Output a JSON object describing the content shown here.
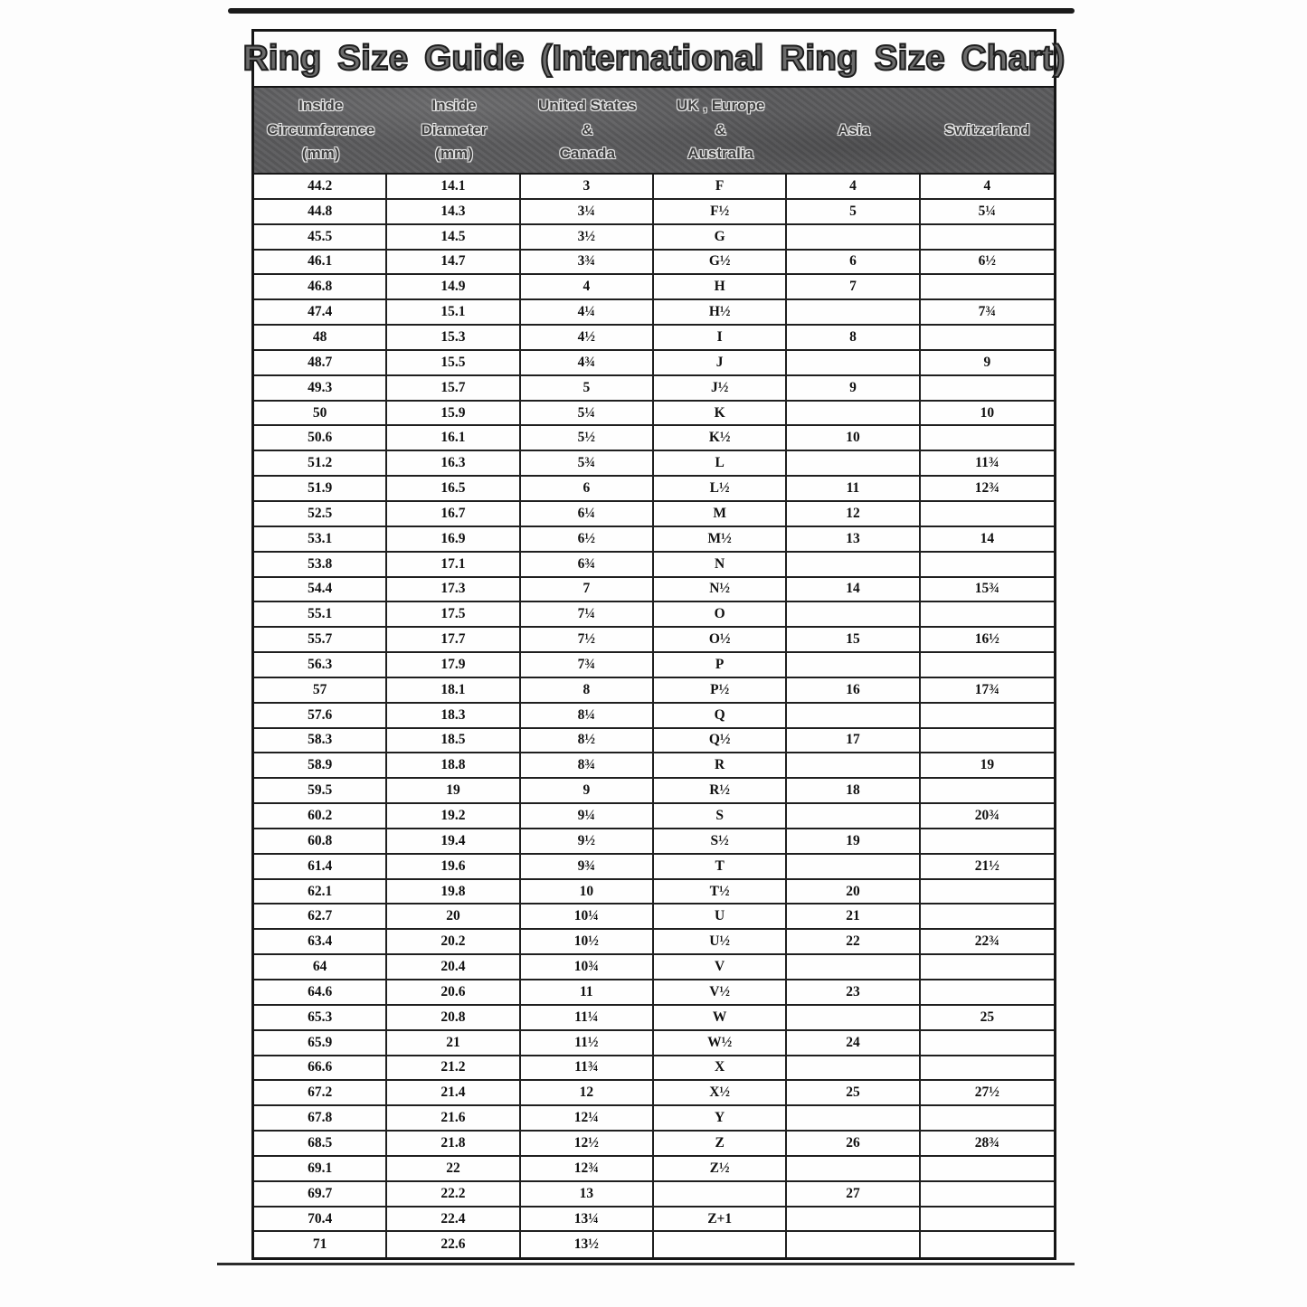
{
  "page": {
    "title": "Ring Size Guide (International Ring Size Chart)"
  },
  "colors": {
    "header_band_bg": "#5a5a5c",
    "grid_border": "#1f1f1f",
    "title_text": "#1d1d1d",
    "header_text": "#404040"
  },
  "table": {
    "headers": [
      {
        "id": "inside-circumference-mm",
        "label": "Inside\nCircumference\n(mm)"
      },
      {
        "id": "inside-diameter-mm",
        "label": "Inside\nDiameter\n(mm)"
      },
      {
        "id": "us-canada",
        "label": "United States\n&\nCanada"
      },
      {
        "id": "uk-europe-australia",
        "label": "UK , Europe\n&\nAustralia"
      },
      {
        "id": "asia",
        "label": "Asia"
      },
      {
        "id": "switzerland",
        "label": "Switzerland"
      }
    ],
    "rows": [
      [
        "44.2",
        "14.1",
        "3",
        "F",
        "4",
        "4"
      ],
      [
        "44.8",
        "14.3",
        "3¼",
        "F½",
        "5",
        "5¼"
      ],
      [
        "45.5",
        "14.5",
        "3½",
        "G",
        "",
        ""
      ],
      [
        "46.1",
        "14.7",
        "3¾",
        "G½",
        "6",
        "6½"
      ],
      [
        "46.8",
        "14.9",
        "4",
        "H",
        "7",
        ""
      ],
      [
        "47.4",
        "15.1",
        "4¼",
        "H½",
        "",
        "7¾"
      ],
      [
        "48",
        "15.3",
        "4½",
        "I",
        "8",
        ""
      ],
      [
        "48.7",
        "15.5",
        "4¾",
        "J",
        "",
        "9"
      ],
      [
        "49.3",
        "15.7",
        "5",
        "J½",
        "9",
        ""
      ],
      [
        "50",
        "15.9",
        "5¼",
        "K",
        "",
        "10"
      ],
      [
        "50.6",
        "16.1",
        "5½",
        "K½",
        "10",
        ""
      ],
      [
        "51.2",
        "16.3",
        "5¾",
        "L",
        "",
        "11¾"
      ],
      [
        "51.9",
        "16.5",
        "6",
        "L½",
        "11",
        "12¾"
      ],
      [
        "52.5",
        "16.7",
        "6¼",
        "M",
        "12",
        ""
      ],
      [
        "53.1",
        "16.9",
        "6½",
        "M½",
        "13",
        "14"
      ],
      [
        "53.8",
        "17.1",
        "6¾",
        "N",
        "",
        ""
      ],
      [
        "54.4",
        "17.3",
        "7",
        "N½",
        "14",
        "15¾"
      ],
      [
        "55.1",
        "17.5",
        "7¼",
        "O",
        "",
        ""
      ],
      [
        "55.7",
        "17.7",
        "7½",
        "O½",
        "15",
        "16½"
      ],
      [
        "56.3",
        "17.9",
        "7¾",
        "P",
        "",
        ""
      ],
      [
        "57",
        "18.1",
        "8",
        "P½",
        "16",
        "17¾"
      ],
      [
        "57.6",
        "18.3",
        "8¼",
        "Q",
        "",
        ""
      ],
      [
        "58.3",
        "18.5",
        "8½",
        "Q½",
        "17",
        ""
      ],
      [
        "58.9",
        "18.8",
        "8¾",
        "R",
        "",
        "19"
      ],
      [
        "59.5",
        "19",
        "9",
        "R½",
        "18",
        ""
      ],
      [
        "60.2",
        "19.2",
        "9¼",
        "S",
        "",
        "20¾"
      ],
      [
        "60.8",
        "19.4",
        "9½",
        "S½",
        "19",
        ""
      ],
      [
        "61.4",
        "19.6",
        "9¾",
        "T",
        "",
        "21½"
      ],
      [
        "62.1",
        "19.8",
        "10",
        "T½",
        "20",
        ""
      ],
      [
        "62.7",
        "20",
        "10¼",
        "U",
        "21",
        ""
      ],
      [
        "63.4",
        "20.2",
        "10½",
        "U½",
        "22",
        "22¾"
      ],
      [
        "64",
        "20.4",
        "10¾",
        "V",
        "",
        ""
      ],
      [
        "64.6",
        "20.6",
        "11",
        "V½",
        "23",
        ""
      ],
      [
        "65.3",
        "20.8",
        "11¼",
        "W",
        "",
        "25"
      ],
      [
        "65.9",
        "21",
        "11½",
        "W½",
        "24",
        ""
      ],
      [
        "66.6",
        "21.2",
        "11¾",
        "X",
        "",
        ""
      ],
      [
        "67.2",
        "21.4",
        "12",
        "X½",
        "25",
        "27½"
      ],
      [
        "67.8",
        "21.6",
        "12¼",
        "Y",
        "",
        ""
      ],
      [
        "68.5",
        "21.8",
        "12½",
        "Z",
        "26",
        "28¾"
      ],
      [
        "69.1",
        "22",
        "12¾",
        "Z½",
        "",
        ""
      ],
      [
        "69.7",
        "22.2",
        "13",
        "",
        "27",
        ""
      ],
      [
        "70.4",
        "22.4",
        "13¼",
        "Z+1",
        "",
        ""
      ],
      [
        "71",
        "22.6",
        "13½",
        "",
        "",
        ""
      ]
    ]
  }
}
